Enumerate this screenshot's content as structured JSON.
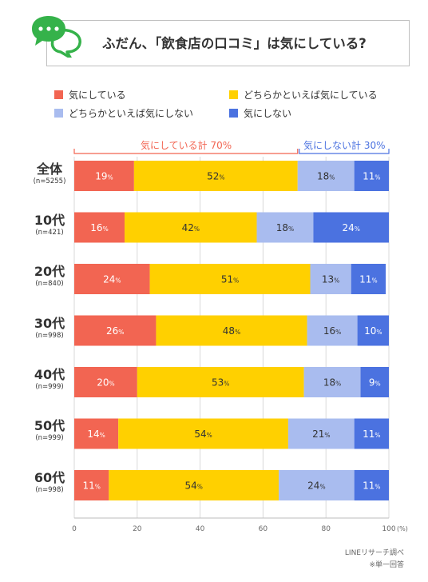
{
  "title": "ふだん、「飲食店の口コミ」は気にしている?",
  "legend": [
    {
      "label": "気にしている",
      "color": "#f26552"
    },
    {
      "label": "どちらかといえば気にしている",
      "color": "#ffd000"
    },
    {
      "label": "どちらかといえば気にしない",
      "color": "#a9bcef"
    },
    {
      "label": "気にしない",
      "color": "#4b72e0"
    }
  ],
  "groups": {
    "positive": {
      "label": "気にしている計 70%",
      "color": "#f26552"
    },
    "negative": {
      "label": "気にしない計 30%",
      "color": "#4b72e0"
    }
  },
  "source": {
    "line1": "LINEリサーチ調べ",
    "line2": "※単一回答"
  },
  "chart_data": {
    "type": "bar",
    "orientation": "horizontal",
    "stacked": true,
    "categories": [
      "全体",
      "10代",
      "20代",
      "30代",
      "40代",
      "50代",
      "60代"
    ],
    "sample_sizes": [
      "(n=5255)",
      "(n=421)",
      "(n=840)",
      "(n=998)",
      "(n=999)",
      "(n=999)",
      "(n=998)"
    ],
    "series": [
      {
        "name": "気にしている",
        "values": [
          19,
          16,
          24,
          26,
          20,
          14,
          11
        ]
      },
      {
        "name": "どちらかといえば気にしている",
        "values": [
          52,
          42,
          51,
          48,
          53,
          54,
          54
        ]
      },
      {
        "name": "どちらかといえば気にしない",
        "values": [
          18,
          18,
          13,
          16,
          18,
          21,
          24
        ]
      },
      {
        "name": "気にしない",
        "values": [
          11,
          24,
          11,
          10,
          9,
          11,
          11
        ]
      }
    ],
    "value_suffix": "%",
    "xlim": [
      0,
      100
    ],
    "xticks": [
      0,
      20,
      40,
      60,
      80,
      100
    ],
    "xunit": "(%)",
    "legend_position": "top"
  }
}
